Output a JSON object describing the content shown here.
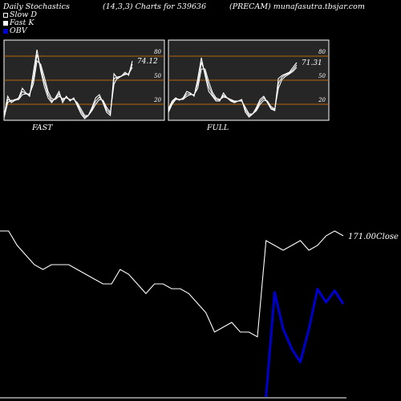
{
  "header": {
    "left": "Daily Stochastics",
    "center": "(14,3,3) Charts for 539636",
    "right": "(PRECAM) munafasutra.tbsjar.com"
  },
  "legend": {
    "items": [
      {
        "label": "Slow  D",
        "swatch": "outline"
      },
      {
        "label": "Fast K",
        "swatch": "filled"
      },
      {
        "label": "OBV",
        "swatch": "obv"
      }
    ]
  },
  "colors": {
    "background": "#000000",
    "panel": "#262626",
    "level_line": "#b8680a",
    "line": "#ffffff",
    "obv": "#0000cc"
  },
  "chart_data": [
    {
      "type": "line",
      "title": "FAST",
      "ylim": [
        0,
        100
      ],
      "levels": [
        20,
        50,
        80
      ],
      "level_labels": [
        "20",
        "50",
        "80"
      ],
      "last_value_label": "74.12",
      "series": [
        {
          "values": [
            5,
            30,
            22,
            25,
            28,
            40,
            34,
            30,
            60,
            88,
            62,
            42,
            28,
            22,
            28,
            36,
            22,
            30,
            24,
            28,
            18,
            8,
            2,
            6,
            16,
            28,
            32,
            22,
            10,
            6,
            58,
            52,
            55,
            60,
            56,
            74
          ]
        },
        {
          "values": [
            4,
            26,
            24,
            26,
            27,
            36,
            33,
            32,
            52,
            82,
            66,
            48,
            32,
            24,
            27,
            33,
            25,
            29,
            25,
            27,
            20,
            11,
            4,
            6,
            14,
            24,
            29,
            24,
            13,
            8,
            52,
            54,
            55,
            58,
            58,
            70
          ]
        },
        {
          "values": [
            3,
            22,
            25,
            25,
            26,
            32,
            33,
            33,
            45,
            74,
            70,
            54,
            36,
            27,
            26,
            30,
            27,
            28,
            26,
            26,
            22,
            14,
            6,
            6,
            12,
            20,
            26,
            25,
            16,
            10,
            45,
            54,
            55,
            57,
            58,
            66
          ]
        }
      ]
    },
    {
      "type": "line",
      "title": "FULL",
      "ylim": [
        0,
        100
      ],
      "levels": [
        20,
        50,
        80
      ],
      "level_labels": [
        "20",
        "50",
        "80"
      ],
      "last_value_label": "71.31",
      "series": [
        {
          "values": [
            14,
            24,
            28,
            25,
            28,
            36,
            34,
            30,
            52,
            78,
            56,
            36,
            30,
            24,
            24,
            34,
            28,
            24,
            22,
            24,
            26,
            10,
            4,
            8,
            16,
            26,
            30,
            22,
            14,
            12,
            52,
            56,
            58,
            60,
            66,
            72
          ]
        },
        {
          "values": [
            12,
            22,
            27,
            26,
            27,
            33,
            33,
            31,
            46,
            72,
            60,
            42,
            32,
            26,
            25,
            31,
            28,
            25,
            23,
            24,
            25,
            13,
            6,
            8,
            14,
            23,
            28,
            23,
            15,
            13,
            46,
            54,
            57,
            59,
            63,
            69
          ]
        },
        {
          "values": [
            10,
            20,
            26,
            26,
            26,
            30,
            32,
            32,
            40,
            64,
            64,
            48,
            35,
            28,
            26,
            29,
            28,
            26,
            24,
            24,
            24,
            16,
            8,
            8,
            12,
            20,
            25,
            24,
            17,
            14,
            40,
            51,
            55,
            58,
            61,
            66
          ]
        }
      ]
    },
    {
      "type": "line",
      "title": "",
      "last_value_label": "171.00Close",
      "series": [
        {
          "name": "Close",
          "values": [
            171.5,
            171.5,
            170.0,
            169.0,
            168.0,
            167.5,
            168.0,
            168.0,
            168.0,
            167.5,
            167.0,
            166.5,
            166.0,
            166.0,
            167.5,
            167.0,
            166.0,
            165.0,
            166.0,
            166.0,
            165.5,
            165.5,
            165.0,
            164.0,
            163.0,
            161.0,
            161.5,
            162.0,
            161.0,
            161.0,
            160.5,
            170.5,
            170.0,
            169.5,
            170.0,
            170.5,
            169.5,
            170.0,
            171.0,
            171.5,
            171.0
          ]
        },
        {
          "name": "OBV",
          "values": [
            null,
            null,
            null,
            null,
            null,
            null,
            null,
            null,
            null,
            null,
            null,
            null,
            null,
            null,
            null,
            null,
            null,
            null,
            null,
            null,
            null,
            null,
            null,
            null,
            null,
            null,
            null,
            null,
            null,
            null,
            null,
            0,
            63,
            41,
            29,
            21,
            41,
            65,
            57,
            64,
            56
          ]
        }
      ]
    }
  ]
}
